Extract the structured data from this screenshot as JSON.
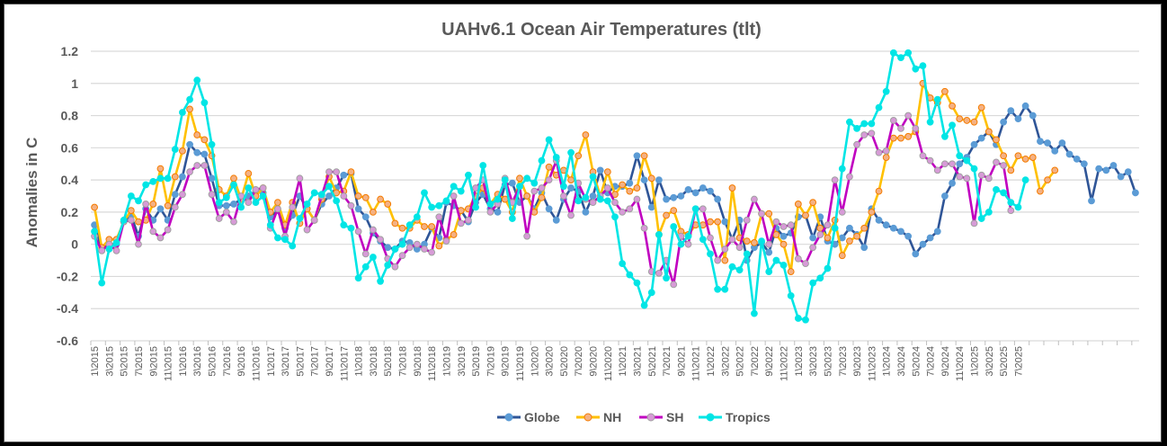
{
  "chart_data": {
    "type": "line",
    "title": "UAHv6.1 Ocean Air Temperatures (tlt)",
    "xlabel": "",
    "ylabel": "Anomalies in C",
    "ylim": [
      -0.6,
      1.2
    ],
    "yticks": [
      "1.2",
      "1",
      "0.8",
      "0.6",
      "0.4",
      "0.2",
      "0",
      "-0.2",
      "-0.4",
      "-0.6"
    ],
    "ytick_values": [
      1.2,
      1.0,
      0.8,
      0.6,
      0.4,
      0.2,
      0,
      -0.2,
      -0.4,
      -0.6
    ],
    "grid": true,
    "legend_position": "bottom",
    "x_start": "1\\2015",
    "x_end": "7\\2025",
    "x_tick_labels": [
      "1\\2015",
      "3\\2015",
      "5\\2015",
      "7\\2015",
      "9\\2015",
      "11\\2015",
      "1\\2016",
      "3\\2016",
      "5\\2016",
      "7\\2016",
      "9\\2016",
      "11\\2016",
      "1\\2017",
      "3\\2017",
      "5\\2017",
      "7\\2017",
      "9\\2017",
      "11\\2017",
      "1\\2018",
      "3\\2018",
      "5\\2018",
      "7\\2018",
      "9\\2018",
      "11\\2018",
      "1\\2019",
      "3\\2019",
      "5\\2019",
      "7\\2019",
      "9\\2019",
      "11\\2019",
      "1\\2020",
      "3\\2020",
      "5\\2020",
      "7\\2020",
      "9\\2020",
      "11\\2020",
      "1\\2021",
      "3\\2021",
      "5\\2021",
      "7\\2021",
      "9\\2021",
      "11\\2021",
      "1\\2022",
      "3\\2022",
      "5\\2022",
      "7\\2022",
      "9\\2022",
      "11\\2022",
      "1\\2023",
      "3\\2023",
      "5\\2023",
      "7\\2023",
      "9\\2023",
      "11\\2023",
      "1\\2024",
      "3\\2024",
      "5\\2024",
      "7\\2024",
      "9\\2024",
      "11\\2024",
      "1\\2025",
      "3\\2025",
      "5\\2025",
      "7\\2025"
    ],
    "series": [
      {
        "name": "Globe",
        "line_color": "#2F5597",
        "marker_color": "#5B9BD5",
        "values": [
          0.12,
          -0.03,
          0.0,
          0.0,
          0.14,
          0.18,
          0.05,
          0.22,
          0.15,
          0.22,
          0.15,
          0.31,
          0.42,
          0.62,
          0.57,
          0.56,
          0.41,
          0.24,
          0.24,
          0.25,
          0.28,
          0.3,
          0.33,
          0.32,
          0.17,
          0.21,
          0.1,
          0.18,
          0.3,
          0.22,
          0.15,
          0.25,
          0.3,
          0.35,
          0.43,
          0.44,
          0.22,
          0.17,
          0.07,
          0.02,
          -0.02,
          -0.03,
          0.02,
          0.01,
          -0.03,
          0.0,
          0.1,
          0.04,
          0.26,
          0.24,
          0.21,
          0.14,
          0.26,
          0.31,
          0.22,
          0.2,
          0.37,
          0.38,
          0.26,
          0.3,
          0.22,
          0.32,
          0.22,
          0.15,
          0.28,
          0.35,
          0.33,
          0.2,
          0.3,
          0.46,
          0.32,
          0.36,
          0.36,
          0.38,
          0.55,
          0.4,
          0.23,
          0.4,
          0.28,
          0.29,
          0.3,
          0.34,
          0.32,
          0.35,
          0.33,
          0.28,
          0.14,
          0.03,
          0.15,
          -0.1,
          -0.02,
          0.01,
          -0.05,
          0.1,
          0.05,
          0.07,
          0.17,
          0.18,
          0.04,
          0.17,
          0.02,
          0.0,
          0.04,
          0.1,
          0.06,
          -0.02,
          0.22,
          0.15,
          0.12,
          0.1,
          0.08,
          0.05,
          -0.06,
          0.0,
          0.04,
          0.08,
          0.3,
          0.38,
          0.5,
          0.54,
          0.62,
          0.66,
          0.7,
          0.62,
          0.76,
          0.83,
          0.78,
          0.86,
          0.8,
          0.64,
          0.63,
          0.58,
          0.63,
          0.56,
          0.53,
          0.5,
          0.27,
          0.47,
          0.46,
          0.49,
          0.42,
          0.45,
          0.32
        ]
      },
      {
        "name": "NH",
        "line_color": "#FFC000",
        "marker_color": "#F4B183",
        "values": [
          0.23,
          -0.02,
          0.03,
          0.03,
          0.14,
          0.21,
          0.14,
          0.15,
          0.25,
          0.47,
          0.24,
          0.42,
          0.58,
          0.84,
          0.68,
          0.65,
          0.55,
          0.34,
          0.3,
          0.41,
          0.28,
          0.44,
          0.3,
          0.35,
          0.2,
          0.26,
          0.12,
          0.26,
          0.13,
          0.22,
          0.15,
          0.28,
          0.42,
          0.32,
          0.33,
          0.45,
          0.3,
          0.29,
          0.2,
          0.28,
          0.25,
          0.13,
          0.1,
          0.1,
          0.15,
          0.11,
          0.11,
          -0.01,
          0.03,
          0.06,
          0.21,
          0.22,
          0.3,
          0.35,
          0.25,
          0.31,
          0.28,
          0.2,
          0.41,
          0.3,
          0.2,
          0.29,
          0.48,
          0.43,
          0.46,
          0.4,
          0.55,
          0.68,
          0.45,
          0.3,
          0.45,
          0.31,
          0.37,
          0.33,
          0.35,
          0.55,
          0.41,
          0.06,
          0.18,
          0.21,
          0.08,
          0.06,
          0.12,
          0.12,
          0.14,
          0.14,
          -0.1,
          0.35,
          0.04,
          0.02,
          0.01,
          0.19,
          0.19,
          0.06,
          0.0,
          -0.17,
          0.25,
          0.18,
          0.26,
          0.1,
          0.04,
          0.15,
          -0.07,
          0.02,
          0.05,
          0.1,
          0.2,
          0.33,
          0.54,
          0.66,
          0.66,
          0.67,
          0.7,
          1.0,
          0.91,
          0.88,
          0.95,
          0.86,
          0.78,
          0.77,
          0.76,
          0.85,
          0.7,
          0.65,
          0.55,
          0.46,
          0.55,
          0.53,
          0.54,
          0.33,
          0.4,
          0.46
        ]
      },
      {
        "name": "SH",
        "line_color": "#C000C0",
        "marker_color": "#D79BD7",
        "values": [
          0.05,
          -0.04,
          0.0,
          -0.04,
          0.14,
          0.15,
          0.0,
          0.25,
          0.08,
          0.04,
          0.09,
          0.23,
          0.31,
          0.45,
          0.49,
          0.49,
          0.31,
          0.16,
          0.2,
          0.14,
          0.3,
          0.26,
          0.34,
          0.35,
          0.1,
          0.22,
          0.05,
          0.23,
          0.41,
          0.09,
          0.15,
          0.3,
          0.45,
          0.45,
          0.3,
          0.24,
          0.08,
          -0.06,
          0.09,
          0.03,
          -0.09,
          -0.14,
          -0.07,
          -0.02,
          0.0,
          -0.03,
          -0.05,
          0.17,
          0.02,
          0.3,
          0.13,
          0.15,
          0.35,
          0.4,
          0.2,
          0.25,
          0.41,
          0.26,
          0.36,
          0.05,
          0.33,
          0.35,
          0.4,
          0.52,
          0.3,
          0.18,
          0.38,
          0.28,
          0.26,
          0.3,
          0.35,
          0.26,
          0.2,
          0.22,
          0.28,
          0.1,
          -0.17,
          -0.18,
          -0.1,
          -0.25,
          0.05,
          0.0,
          0.22,
          0.22,
          0.04,
          -0.1,
          -0.03,
          0.03,
          -0.02,
          0.15,
          0.28,
          0.19,
          0.0,
          0.14,
          0.11,
          0.12,
          -0.09,
          -0.12,
          -0.02,
          0.06,
          0.12,
          0.4,
          0.2,
          0.42,
          0.62,
          0.68,
          0.69,
          0.57,
          0.58,
          0.77,
          0.72,
          0.8,
          0.72,
          0.55,
          0.52,
          0.46,
          0.5,
          0.5,
          0.42,
          0.41,
          0.13,
          0.43,
          0.41,
          0.51,
          0.49,
          0.21
        ]
      },
      {
        "name": "Tropics",
        "line_color": "#00E5E5",
        "marker_color": "#00E5E5",
        "values": [
          0.08,
          -0.24,
          -0.03,
          0.01,
          0.15,
          0.3,
          0.27,
          0.37,
          0.39,
          0.41,
          0.41,
          0.59,
          0.82,
          0.9,
          1.02,
          0.88,
          0.62,
          0.26,
          0.29,
          0.37,
          0.23,
          0.35,
          0.26,
          0.3,
          0.12,
          0.04,
          0.03,
          -0.01,
          0.16,
          0.25,
          0.32,
          0.31,
          0.36,
          0.27,
          0.12,
          0.1,
          -0.21,
          -0.14,
          -0.08,
          -0.23,
          -0.13,
          -0.03,
          0.0,
          0.12,
          0.17,
          0.32,
          0.23,
          0.24,
          0.27,
          0.36,
          0.33,
          0.43,
          0.23,
          0.49,
          0.25,
          0.28,
          0.4,
          0.16,
          0.36,
          0.41,
          0.38,
          0.52,
          0.65,
          0.54,
          0.36,
          0.57,
          0.27,
          0.29,
          0.42,
          0.28,
          0.27,
          0.17,
          -0.12,
          -0.19,
          -0.24,
          -0.38,
          -0.3,
          0.06,
          -0.21,
          0.11,
          0.0,
          0.05,
          0.22,
          0.03,
          -0.06,
          -0.28,
          -0.28,
          -0.14,
          -0.16,
          -0.06,
          -0.43,
          0.02,
          -0.17,
          -0.1,
          -0.13,
          -0.32,
          -0.46,
          -0.47,
          -0.24,
          -0.21,
          -0.15,
          0.1,
          0.47,
          0.76,
          0.72,
          0.75,
          0.75,
          0.85,
          0.95,
          1.19,
          1.16,
          1.19,
          1.09,
          1.11,
          0.76,
          0.9,
          0.67,
          0.74,
          0.55,
          0.52,
          0.47,
          0.16,
          0.2,
          0.34,
          0.32,
          0.26,
          0.23,
          0.4
        ]
      }
    ]
  }
}
